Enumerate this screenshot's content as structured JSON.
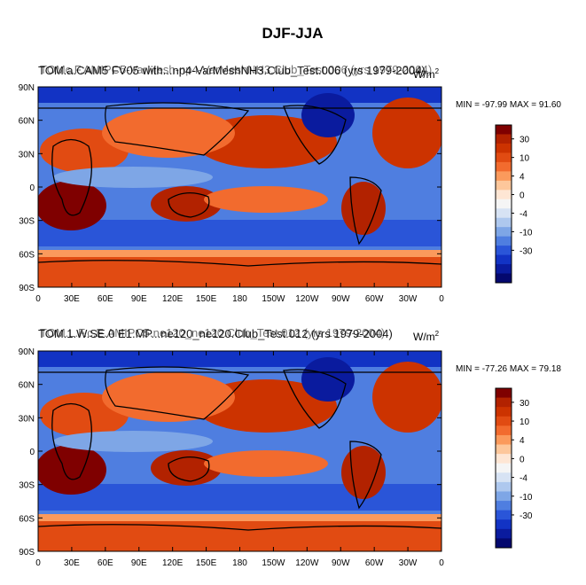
{
  "figure": {
    "title": "DJF-JJA"
  },
  "chart_data": [
    {
      "type": "heatmap",
      "title_overlay": "TOM.a.CAM5 FV05 with...np4-VarMeshNH3.Club_Test.006 (yrs 1979-2004)",
      "title_left": "TOMc.F.AMIPC5-VarMesh-np4-VarMeshNH3.Club_Test.006 (yrs 1979-2004)",
      "units": "W/m",
      "units_sup": "2",
      "min_max": "MIN = -97.99 MAX =  91.60",
      "min": -97.99,
      "max": 91.6,
      "x_ticks": [
        "0",
        "30E",
        "60E",
        "90E",
        "120E",
        "150E",
        "180",
        "150W",
        "120W",
        "90W",
        "60W",
        "30W",
        "0"
      ],
      "y_ticks": [
        "90N",
        "60N",
        "30N",
        "0",
        "30S",
        "60S",
        "90S"
      ],
      "colorbar_labels": [
        "30",
        "10",
        "4",
        "0",
        "-4",
        "-10",
        "-30"
      ]
    },
    {
      "type": "heatmap",
      "title_overlay": "TOM.1.W.SE.0 E1.MP...ne120_ne120.Club_Test.012 (yrs 1979-2004)",
      "title_left": "TOM.L.F.c.E.AMIPC5.ne120_ne120.Club_Test.012 (yrs 1979-2004)",
      "units": "W/m",
      "units_sup": "2",
      "min_max": "MIN = -77.26 MAX =  79.18",
      "min": -77.26,
      "max": 79.18,
      "x_ticks": [
        "0",
        "30E",
        "60E",
        "90E",
        "120E",
        "150E",
        "180",
        "150W",
        "120W",
        "90W",
        "60W",
        "30W",
        "0"
      ],
      "y_ticks": [
        "90N",
        "60N",
        "30N",
        "0",
        "30S",
        "60S",
        "90S"
      ],
      "colorbar_labels": [
        "30",
        "10",
        "4",
        "0",
        "-4",
        "-10",
        "-30"
      ]
    }
  ],
  "colors": {
    "scale": [
      "#7f0000",
      "#b22200",
      "#cc3300",
      "#e14b12",
      "#f26b2e",
      "#fb9a5c",
      "#fdc79b",
      "#fee6d4",
      "#f5f5f5",
      "#d7e3f4",
      "#aec8ee",
      "#7ea6e6",
      "#4f7ee0",
      "#2a55d8",
      "#1233c4",
      "#0a1b9e",
      "#04086e"
    ],
    "frame": "#000000",
    "coast": "#000000"
  }
}
